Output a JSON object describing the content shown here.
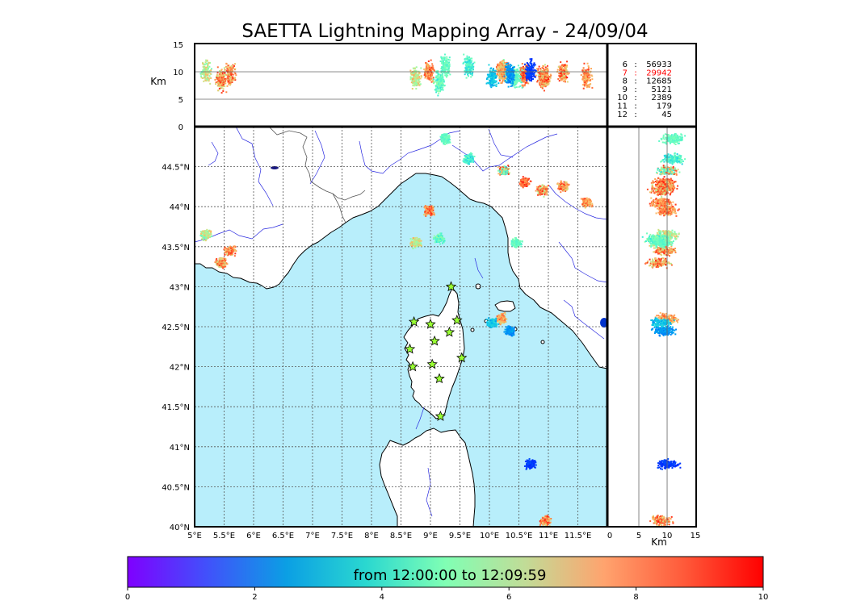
{
  "title": "SAETTA Lightning Mapping Array - 24/09/04",
  "km_label": "Km",
  "colors": {
    "sea": "#b8eefb",
    "land": "#ffffff",
    "coast": "#000000",
    "river": "#2a2ae0",
    "border": "#555555",
    "grid": "#555555",
    "station_fill": "#99ff33"
  },
  "stats": {
    "rows": [
      {
        "id": "6",
        "count": "56933",
        "highlight": false
      },
      {
        "id": "7",
        "count": "29942",
        "highlight": true
      },
      {
        "id": "8",
        "count": "12685",
        "highlight": false
      },
      {
        "id": "9",
        "count": "5121",
        "highlight": false
      },
      {
        "id": "10",
        "count": "2389",
        "highlight": false
      },
      {
        "id": "11",
        "count": "179",
        "highlight": false
      },
      {
        "id": "12",
        "count": "45",
        "highlight": false
      }
    ]
  },
  "chart_data": {
    "type": "scatter",
    "title": "SAETTA Lightning Mapping Array - 24/09/04",
    "map": {
      "lon_range": [
        5,
        12
      ],
      "lat_range": [
        40,
        45
      ],
      "lon_ticks": [
        5,
        5.5,
        6,
        6.5,
        7,
        7.5,
        8,
        8.5,
        9,
        9.5,
        10,
        10.5,
        11,
        11.5
      ],
      "lon_tick_labels": [
        "5°E",
        "5.5°E",
        "6°E",
        "6.5°E",
        "7°E",
        "7.5°E",
        "8°E",
        "8.5°E",
        "9°E",
        "9.5°E",
        "10°E",
        "10.5°E",
        "11°E",
        "11.5°E"
      ],
      "lat_ticks": [
        40,
        40.5,
        41,
        41.5,
        42,
        42.5,
        43,
        43.5,
        44,
        44.5
      ],
      "lat_tick_labels": [
        "40°N",
        "40.5°N",
        "41°N",
        "41.5°N",
        "42°N",
        "42.5°N",
        "43°N",
        "43.5°N",
        "44°N",
        "44.5°N"
      ],
      "grid": true
    },
    "altitude_axis": {
      "label": "Km",
      "range": [
        0,
        15
      ],
      "ticks": [
        0,
        5,
        10,
        15
      ],
      "tick_labels": [
        "0",
        "5",
        "10",
        "15"
      ]
    },
    "stations": [
      {
        "lon": 9.35,
        "lat": 43.0
      },
      {
        "lon": 8.72,
        "lat": 42.56
      },
      {
        "lon": 9.0,
        "lat": 42.53
      },
      {
        "lon": 9.45,
        "lat": 42.58
      },
      {
        "lon": 9.32,
        "lat": 42.43
      },
      {
        "lon": 9.07,
        "lat": 42.32
      },
      {
        "lon": 8.65,
        "lat": 42.22
      },
      {
        "lon": 9.53,
        "lat": 42.11
      },
      {
        "lon": 8.7,
        "lat": 42.0
      },
      {
        "lon": 9.03,
        "lat": 42.03
      },
      {
        "lon": 9.15,
        "lat": 41.85
      },
      {
        "lon": 9.17,
        "lat": 41.38
      }
    ],
    "lightning_clusters": [
      {
        "lon": 5.2,
        "lat": 43.65,
        "alt": 10,
        "t0": 4.5,
        "t1": 7.5
      },
      {
        "lon": 5.6,
        "lat": 43.45,
        "alt": 9.5,
        "t0": 6.5,
        "t1": 9.5
      },
      {
        "lon": 5.45,
        "lat": 43.3,
        "alt": 8.5,
        "t0": 6,
        "t1": 9.5
      },
      {
        "lon": 8.98,
        "lat": 43.95,
        "alt": 10,
        "t0": 7,
        "t1": 9.5
      },
      {
        "lon": 8.75,
        "lat": 43.55,
        "alt": 9,
        "t0": 5,
        "t1": 8
      },
      {
        "lon": 9.15,
        "lat": 43.6,
        "alt": 8,
        "t0": 3.5,
        "t1": 5.5
      },
      {
        "lon": 10.25,
        "lat": 44.45,
        "alt": 10,
        "t0": 3,
        "t1": 9.5
      },
      {
        "lon": 10.6,
        "lat": 44.3,
        "alt": 9.5,
        "t0": 7.5,
        "t1": 9.8
      },
      {
        "lon": 10.9,
        "lat": 44.2,
        "alt": 9,
        "t0": 6,
        "t1": 9.5
      },
      {
        "lon": 11.25,
        "lat": 44.25,
        "alt": 10,
        "t0": 6.5,
        "t1": 9.8
      },
      {
        "lon": 11.65,
        "lat": 44.05,
        "alt": 9,
        "t0": 7,
        "t1": 9.5
      },
      {
        "lon": 10.45,
        "lat": 43.55,
        "alt": 9,
        "t0": 4,
        "t1": 5
      },
      {
        "lon": 10.2,
        "lat": 42.6,
        "alt": 10,
        "t0": 6.5,
        "t1": 9
      },
      {
        "lon": 10.35,
        "lat": 42.45,
        "alt": 9.5,
        "t0": 1.5,
        "t1": 2.5
      },
      {
        "lon": 10.05,
        "lat": 42.55,
        "alt": 9,
        "t0": 2,
        "t1": 3.5
      },
      {
        "lon": 9.25,
        "lat": 44.85,
        "alt": 11,
        "t0": 4,
        "t1": 5
      },
      {
        "lon": 9.65,
        "lat": 44.6,
        "alt": 11,
        "t0": 3,
        "t1": 5
      },
      {
        "lon": 10.95,
        "lat": 40.08,
        "alt": 9,
        "t0": 6.5,
        "t1": 9.8
      },
      {
        "lon": 10.7,
        "lat": 40.78,
        "alt": 10,
        "t0": 0.5,
        "t1": 1
      }
    ],
    "colorbar": {
      "range": [
        0,
        10
      ],
      "ticks": [
        0,
        2,
        4,
        6,
        8,
        10
      ],
      "tick_labels": [
        "0",
        "2",
        "4",
        "6",
        "8",
        "10"
      ],
      "label": "from 12:00:00 to 12:09:59",
      "colormap": "rainbow"
    }
  }
}
